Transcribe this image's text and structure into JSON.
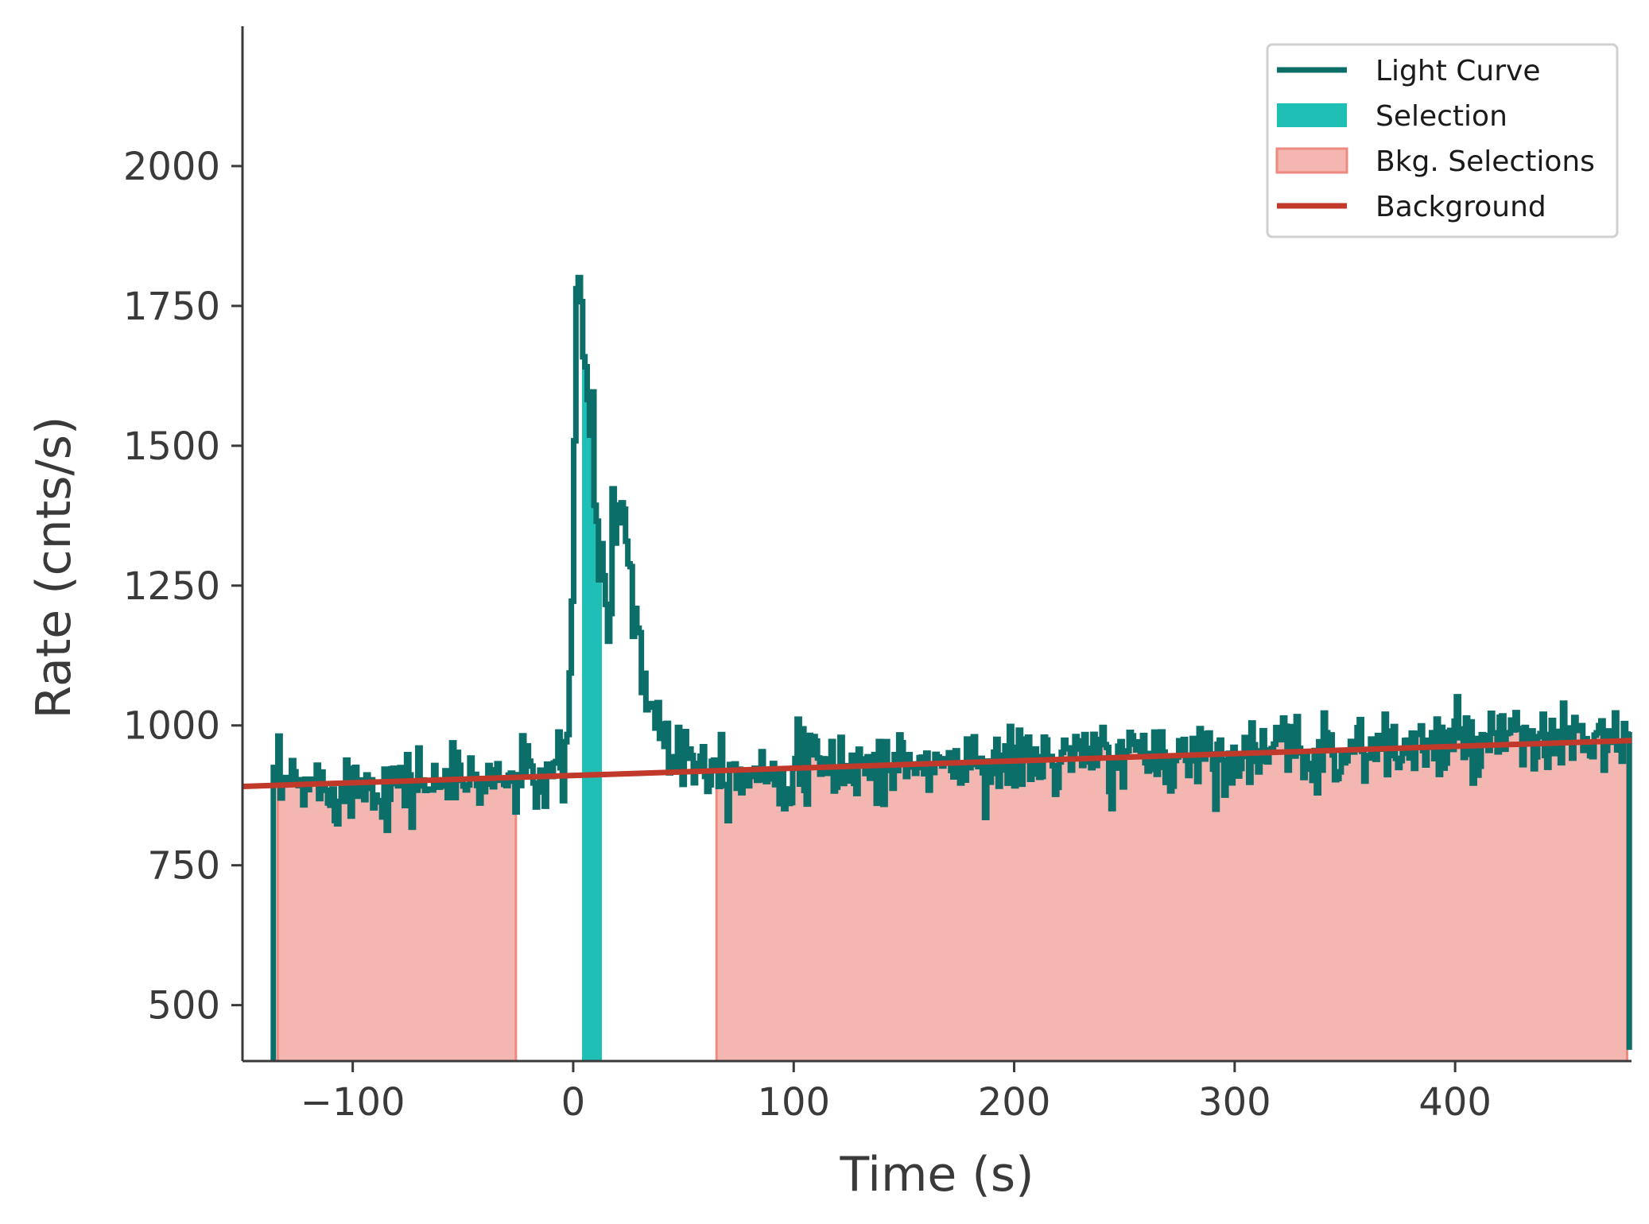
{
  "chart_data": {
    "type": "line",
    "title": "",
    "xlabel": "Time (s)",
    "ylabel": "Rate (cnts/s)",
    "xlim": [
      -150,
      480
    ],
    "ylim": [
      400,
      2250
    ],
    "xticks": [
      -100,
      0,
      100,
      200,
      300,
      400
    ],
    "xtick_labels": [
      "−100",
      "0",
      "100",
      "200",
      "300",
      "400"
    ],
    "yticks": [
      500,
      750,
      1000,
      1250,
      1500,
      1750,
      2000
    ],
    "ytick_labels": [
      "500",
      "750",
      "1000",
      "1250",
      "1500",
      "1750",
      "2000"
    ],
    "grid": false,
    "legend_position": "top-right",
    "colors": {
      "light_curve": "#0b6e69",
      "selection": "#20bfb6",
      "bkg_fill": "#f4b6b1",
      "bkg_edge": "#ee8a80",
      "background": "#c0392b",
      "axis": "#3a3a3a"
    },
    "legend": [
      {
        "key": "light_curve",
        "label": "Light Curve",
        "style": "line"
      },
      {
        "key": "selection",
        "label": "Selection",
        "style": "patch"
      },
      {
        "key": "bkg",
        "label": "Bkg. Selections",
        "style": "patch-edge"
      },
      {
        "key": "background",
        "label": "Background",
        "style": "line"
      }
    ],
    "bin_width": 1.024,
    "light_curve": {
      "t_start": -136,
      "t_end": 479,
      "baseline_start": 890,
      "baseline_end": 975,
      "noise_sd": 32,
      "drop_value_start": 400,
      "drop_value_end": 420,
      "pulse_profile": [
        {
          "t": -4,
          "rate": 960
        },
        {
          "t": -1,
          "rate": 1050
        },
        {
          "t": 0,
          "rate": 1250
        },
        {
          "t": 1,
          "rate": 1600
        },
        {
          "t": 2,
          "rate": 1800
        },
        {
          "t": 3,
          "rate": 1870
        },
        {
          "t": 5,
          "rate": 1660
        },
        {
          "t": 7,
          "rate": 1560
        },
        {
          "t": 9,
          "rate": 1500
        },
        {
          "t": 11,
          "rate": 1320
        },
        {
          "t": 14,
          "rate": 1270
        },
        {
          "t": 16,
          "rate": 1180
        },
        {
          "t": 18,
          "rate": 1340
        },
        {
          "t": 20,
          "rate": 1360
        },
        {
          "t": 22,
          "rate": 1400
        },
        {
          "t": 25,
          "rate": 1330
        },
        {
          "t": 27,
          "rate": 1230
        },
        {
          "t": 29,
          "rate": 1170
        },
        {
          "t": 32,
          "rate": 1090
        },
        {
          "t": 36,
          "rate": 1030
        },
        {
          "t": 40,
          "rate": 990
        },
        {
          "t": 46,
          "rate": 960
        },
        {
          "t": 55,
          "rate": 945
        },
        {
          "t": 70,
          "rate": 930
        }
      ]
    },
    "selection": [
      {
        "start": 4,
        "end": 13
      }
    ],
    "bkg_selections": [
      {
        "start": -134,
        "end": -26
      },
      {
        "start": 65,
        "end": 478
      }
    ],
    "background": {
      "x": [
        -150,
        480
      ],
      "y": [
        891,
        973
      ]
    }
  }
}
